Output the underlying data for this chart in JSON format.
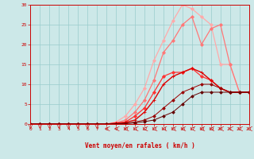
{
  "bg_color": "#cce8e8",
  "grid_color": "#99cccc",
  "xlabel": "Vent moyen/en rafales ( km/h )",
  "xlim": [
    0,
    23
  ],
  "ylim": [
    0,
    30
  ],
  "xticks": [
    0,
    1,
    2,
    3,
    4,
    5,
    6,
    7,
    8,
    9,
    10,
    11,
    12,
    13,
    14,
    15,
    16,
    17,
    18,
    19,
    20,
    21,
    22,
    23
  ],
  "yticks": [
    0,
    5,
    10,
    15,
    20,
    25,
    30
  ],
  "series": [
    {
      "color": "#ffaaaa",
      "x": [
        0,
        1,
        2,
        3,
        4,
        5,
        6,
        7,
        8,
        9,
        10,
        11,
        12,
        13,
        14,
        15,
        16,
        17,
        18,
        19,
        20,
        21,
        22,
        23
      ],
      "y": [
        0,
        0,
        0,
        0,
        0,
        0,
        0,
        0,
        0,
        0.5,
        2,
        5,
        9,
        16,
        21,
        26,
        30,
        29,
        27,
        25,
        15,
        15,
        8,
        8
      ],
      "marker": "D",
      "markersize": 2.0,
      "linewidth": 0.9
    },
    {
      "color": "#ff7777",
      "x": [
        0,
        1,
        2,
        3,
        4,
        5,
        6,
        7,
        8,
        9,
        10,
        11,
        12,
        13,
        14,
        15,
        16,
        17,
        18,
        19,
        20,
        21,
        22,
        23
      ],
      "y": [
        0,
        0,
        0,
        0,
        0,
        0,
        0,
        0,
        0,
        0.3,
        1,
        3,
        6,
        11,
        18,
        21,
        25,
        27,
        20,
        24,
        25,
        15,
        8,
        8
      ],
      "marker": "D",
      "markersize": 2.0,
      "linewidth": 0.9
    },
    {
      "color": "#ff3333",
      "x": [
        0,
        1,
        2,
        3,
        4,
        5,
        6,
        7,
        8,
        9,
        10,
        11,
        12,
        13,
        14,
        15,
        16,
        17,
        18,
        19,
        20,
        21,
        22,
        23
      ],
      "y": [
        0,
        0,
        0,
        0,
        0,
        0,
        0,
        0,
        0,
        0.2,
        0.5,
        2,
        4,
        8,
        12,
        13,
        13,
        14,
        12,
        11,
        9,
        8,
        8,
        8
      ],
      "marker": "D",
      "markersize": 2.0,
      "linewidth": 0.9
    },
    {
      "color": "#dd0000",
      "x": [
        0,
        1,
        2,
        3,
        4,
        5,
        6,
        7,
        8,
        9,
        10,
        11,
        12,
        13,
        14,
        15,
        16,
        17,
        18,
        19,
        20,
        21,
        22,
        23
      ],
      "y": [
        0,
        0,
        0,
        0,
        0,
        0,
        0,
        0,
        0,
        0.2,
        0.4,
        1,
        3,
        6,
        10,
        12,
        13,
        14,
        13,
        11,
        9,
        8,
        8,
        8
      ],
      "marker": "+",
      "markersize": 3.5,
      "linewidth": 1.0
    },
    {
      "color": "#990000",
      "x": [
        0,
        1,
        2,
        3,
        4,
        5,
        6,
        7,
        8,
        9,
        10,
        11,
        12,
        13,
        14,
        15,
        16,
        17,
        18,
        19,
        20,
        21,
        22,
        23
      ],
      "y": [
        0,
        0,
        0,
        0,
        0,
        0,
        0,
        0,
        0,
        0.1,
        0.2,
        0.5,
        1,
        2,
        4,
        6,
        8,
        9,
        10,
        10,
        9,
        8,
        8,
        8
      ],
      "marker": "D",
      "markersize": 1.8,
      "linewidth": 0.7
    },
    {
      "color": "#660000",
      "x": [
        0,
        1,
        2,
        3,
        4,
        5,
        6,
        7,
        8,
        9,
        10,
        11,
        12,
        13,
        14,
        15,
        16,
        17,
        18,
        19,
        20,
        21,
        22,
        23
      ],
      "y": [
        0,
        0,
        0,
        0,
        0,
        0,
        0,
        0,
        0,
        0.05,
        0.1,
        0.3,
        0.6,
        1,
        2,
        3,
        5,
        7,
        8,
        8,
        8,
        8,
        8,
        8
      ],
      "marker": "D",
      "markersize": 1.8,
      "linewidth": 0.7
    }
  ],
  "label_color": "#cc0000",
  "tick_color": "#cc0000",
  "label_fontsize": 5.5,
  "tick_fontsize": 4.5
}
